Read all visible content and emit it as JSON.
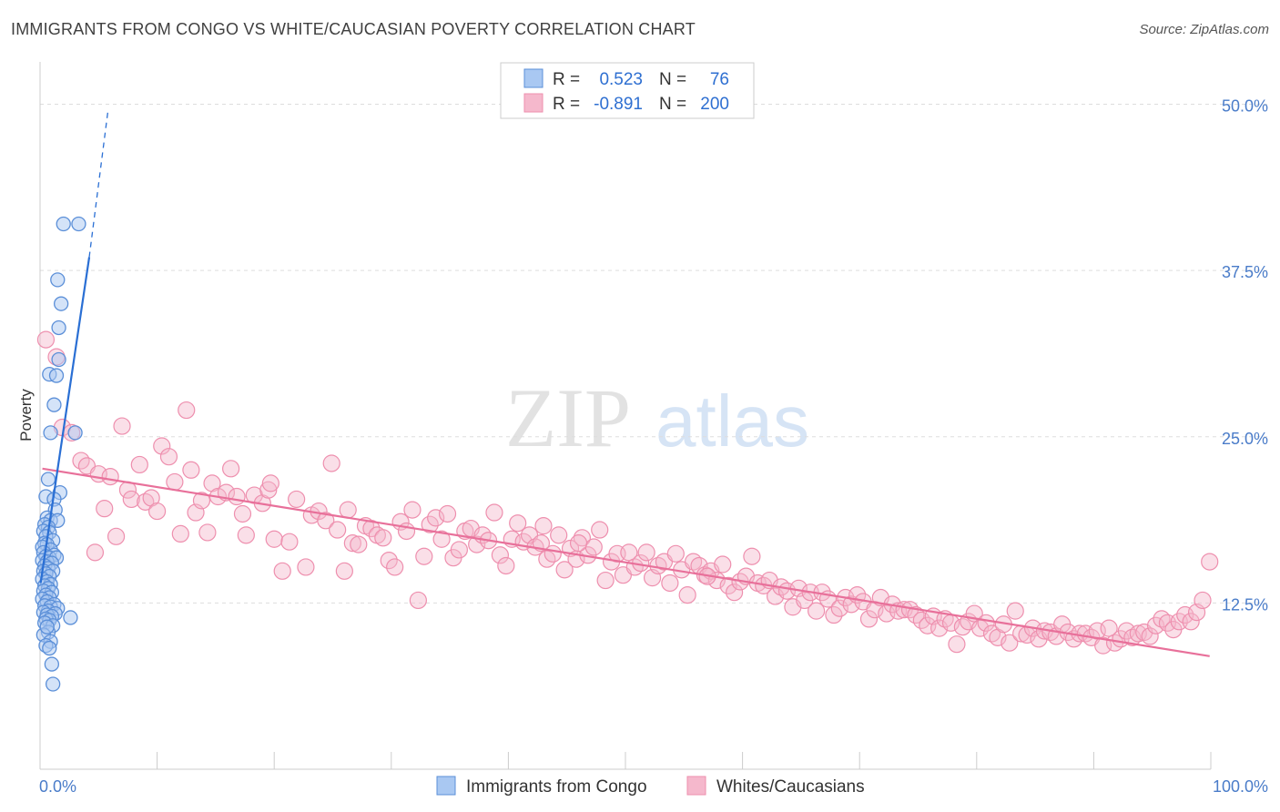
{
  "title": "IMMIGRANTS FROM CONGO VS WHITE/CAUCASIAN POVERTY CORRELATION CHART",
  "source": "Source: ZipAtlas.com",
  "watermark": {
    "zip": "ZIP",
    "atlas": "atlas"
  },
  "colors": {
    "blue_fill": "#a9c8f2",
    "blue_stroke": "#5b8fd8",
    "blue_line": "#2a6fd4",
    "pink_fill": "#f5b8cc",
    "pink_stroke": "#ee8fae",
    "pink_line": "#e8709a",
    "grid": "#dddddd",
    "axis_label": "#4a7cc9"
  },
  "legend": {
    "rows": [
      {
        "r_label": "R =",
        "r_value": "0.523",
        "n_label": "N =",
        "n_value": "76",
        "series": "Immigrants from Congo"
      },
      {
        "r_label": "R =",
        "r_value": "-0.891",
        "n_label": "N =",
        "n_value": "200",
        "series": "Whites/Caucasians"
      }
    ]
  },
  "bottom_legend": [
    "Immigrants from Congo",
    "Whites/Caucasians"
  ],
  "chart_data": {
    "type": "scatter",
    "title": "IMMIGRANTS FROM CONGO VS WHITE/CAUCASIAN POVERTY CORRELATION CHART",
    "xlabel": "",
    "ylabel": "Poverty",
    "xlim": [
      0,
      100
    ],
    "ylim": [
      0,
      52.5
    ],
    "x_tick_labels": [
      "0.0%",
      "100.0%"
    ],
    "y_ticks": [
      12.5,
      25.0,
      37.5,
      50.0
    ],
    "y_tick_labels": [
      "12.5%",
      "25.0%",
      "37.5%",
      "50.0%"
    ],
    "grid": true,
    "legend_position": "top-center",
    "series": [
      {
        "name": "Immigrants from Congo",
        "trend": {
          "x": [
            0.05,
            4.2
          ],
          "y": [
            14.0,
            38.5
          ],
          "dashed_to": {
            "x": 5.8,
            "y": 49.5
          }
        },
        "points": [
          [
            2.0,
            41.0
          ],
          [
            3.3,
            41.0
          ],
          [
            1.5,
            36.8
          ],
          [
            1.8,
            35.0
          ],
          [
            1.6,
            33.2
          ],
          [
            0.8,
            29.7
          ],
          [
            1.4,
            29.6
          ],
          [
            1.6,
            30.8
          ],
          [
            1.2,
            27.4
          ],
          [
            0.9,
            25.3
          ],
          [
            3.0,
            25.3
          ],
          [
            0.7,
            21.8
          ],
          [
            1.7,
            20.8
          ],
          [
            0.5,
            20.5
          ],
          [
            1.2,
            20.3
          ],
          [
            1.3,
            19.5
          ],
          [
            0.6,
            18.9
          ],
          [
            0.9,
            18.7
          ],
          [
            1.5,
            18.7
          ],
          [
            0.4,
            18.4
          ],
          [
            0.7,
            18.2
          ],
          [
            0.3,
            17.9
          ],
          [
            0.8,
            17.8
          ],
          [
            0.5,
            17.5
          ],
          [
            1.1,
            17.2
          ],
          [
            0.4,
            17.0
          ],
          [
            0.6,
            16.9
          ],
          [
            0.2,
            16.7
          ],
          [
            0.9,
            16.5
          ],
          [
            0.3,
            16.3
          ],
          [
            1.2,
            16.1
          ],
          [
            0.5,
            16.0
          ],
          [
            0.8,
            15.9
          ],
          [
            1.4,
            15.9
          ],
          [
            0.2,
            15.7
          ],
          [
            0.6,
            15.6
          ],
          [
            1.0,
            15.5
          ],
          [
            0.4,
            15.3
          ],
          [
            0.7,
            15.1
          ],
          [
            0.3,
            14.9
          ],
          [
            1.1,
            14.9
          ],
          [
            0.5,
            14.7
          ],
          [
            0.8,
            14.5
          ],
          [
            0.2,
            14.3
          ],
          [
            0.6,
            14.1
          ],
          [
            0.9,
            13.9
          ],
          [
            0.4,
            13.8
          ],
          [
            0.7,
            13.6
          ],
          [
            0.3,
            13.4
          ],
          [
            1.0,
            13.3
          ],
          [
            0.5,
            13.1
          ],
          [
            0.8,
            12.9
          ],
          [
            0.2,
            12.8
          ],
          [
            0.6,
            12.6
          ],
          [
            1.2,
            12.4
          ],
          [
            0.4,
            12.3
          ],
          [
            0.9,
            12.2
          ],
          [
            1.5,
            12.1
          ],
          [
            0.7,
            11.9
          ],
          [
            0.3,
            11.8
          ],
          [
            1.3,
            11.7
          ],
          [
            0.6,
            11.6
          ],
          [
            1.0,
            11.5
          ],
          [
            2.6,
            11.4
          ],
          [
            0.5,
            11.3
          ],
          [
            0.8,
            11.2
          ],
          [
            0.4,
            11.0
          ],
          [
            1.1,
            10.8
          ],
          [
            0.7,
            10.3
          ],
          [
            0.3,
            10.1
          ],
          [
            0.9,
            9.6
          ],
          [
            0.5,
            9.3
          ],
          [
            0.8,
            9.1
          ],
          [
            1.0,
            7.9
          ],
          [
            1.1,
            6.4
          ],
          [
            0.6,
            10.7
          ]
        ]
      },
      {
        "name": "Whites/Caucasians",
        "trend": {
          "x": [
            0.2,
            99.9
          ],
          "y": [
            22.6,
            8.5
          ]
        },
        "points": [
          [
            0.5,
            32.3
          ],
          [
            1.4,
            31.0
          ],
          [
            1.9,
            25.7
          ],
          [
            2.7,
            25.3
          ],
          [
            3.5,
            23.2
          ],
          [
            4.0,
            22.8
          ],
          [
            4.7,
            16.3
          ],
          [
            5.0,
            22.2
          ],
          [
            5.5,
            19.6
          ],
          [
            6.0,
            22.0
          ],
          [
            6.5,
            17.5
          ],
          [
            7.0,
            25.8
          ],
          [
            7.5,
            21.0
          ],
          [
            7.8,
            20.3
          ],
          [
            8.5,
            22.9
          ],
          [
            9.0,
            20.1
          ],
          [
            9.5,
            20.4
          ],
          [
            10.0,
            19.4
          ],
          [
            10.4,
            24.3
          ],
          [
            11.0,
            23.5
          ],
          [
            11.5,
            21.6
          ],
          [
            12.0,
            17.7
          ],
          [
            12.5,
            27.0
          ],
          [
            12.9,
            22.5
          ],
          [
            13.3,
            19.3
          ],
          [
            13.8,
            20.2
          ],
          [
            14.3,
            17.8
          ],
          [
            14.7,
            21.5
          ],
          [
            15.2,
            20.5
          ],
          [
            15.9,
            20.8
          ],
          [
            16.3,
            22.6
          ],
          [
            16.8,
            20.5
          ],
          [
            17.3,
            19.2
          ],
          [
            17.6,
            17.6
          ],
          [
            18.3,
            20.6
          ],
          [
            19.0,
            20.0
          ],
          [
            19.5,
            21.0
          ],
          [
            19.7,
            21.5
          ],
          [
            20.0,
            17.3
          ],
          [
            20.7,
            14.9
          ],
          [
            21.3,
            17.1
          ],
          [
            21.9,
            20.3
          ],
          [
            22.7,
            15.2
          ],
          [
            23.2,
            19.1
          ],
          [
            23.8,
            19.4
          ],
          [
            24.4,
            18.7
          ],
          [
            24.9,
            23.0
          ],
          [
            25.4,
            18.0
          ],
          [
            26.0,
            14.9
          ],
          [
            26.3,
            19.5
          ],
          [
            26.7,
            17.0
          ],
          [
            27.2,
            16.9
          ],
          [
            27.8,
            18.3
          ],
          [
            28.3,
            18.1
          ],
          [
            28.8,
            17.6
          ],
          [
            29.3,
            17.4
          ],
          [
            29.8,
            15.7
          ],
          [
            30.3,
            15.2
          ],
          [
            30.8,
            18.6
          ],
          [
            31.3,
            17.9
          ],
          [
            31.8,
            19.5
          ],
          [
            32.3,
            12.7
          ],
          [
            32.8,
            16.0
          ],
          [
            33.3,
            18.4
          ],
          [
            33.8,
            18.9
          ],
          [
            34.3,
            17.3
          ],
          [
            34.8,
            19.2
          ],
          [
            35.3,
            15.9
          ],
          [
            35.8,
            16.5
          ],
          [
            36.3,
            17.9
          ],
          [
            36.8,
            18.1
          ],
          [
            37.3,
            16.9
          ],
          [
            37.8,
            17.6
          ],
          [
            38.3,
            17.2
          ],
          [
            38.8,
            19.3
          ],
          [
            39.3,
            16.1
          ],
          [
            39.8,
            15.3
          ],
          [
            40.3,
            17.3
          ],
          [
            40.8,
            18.5
          ],
          [
            41.3,
            17.1
          ],
          [
            41.8,
            17.6
          ],
          [
            42.3,
            16.7
          ],
          [
            42.8,
            17.0
          ],
          [
            43.3,
            15.8
          ],
          [
            43.8,
            16.2
          ],
          [
            44.3,
            17.6
          ],
          [
            44.8,
            15.0
          ],
          [
            45.3,
            16.6
          ],
          [
            45.8,
            15.8
          ],
          [
            46.3,
            17.4
          ],
          [
            46.8,
            16.1
          ],
          [
            47.3,
            16.7
          ],
          [
            47.8,
            18.0
          ],
          [
            48.3,
            14.2
          ],
          [
            48.8,
            15.6
          ],
          [
            49.3,
            16.2
          ],
          [
            49.8,
            14.6
          ],
          [
            50.3,
            16.3
          ],
          [
            50.8,
            15.2
          ],
          [
            51.3,
            15.5
          ],
          [
            51.8,
            16.3
          ],
          [
            52.3,
            14.4
          ],
          [
            52.8,
            15.3
          ],
          [
            53.3,
            15.6
          ],
          [
            53.8,
            14.0
          ],
          [
            54.3,
            16.2
          ],
          [
            54.8,
            15.0
          ],
          [
            55.3,
            13.1
          ],
          [
            55.8,
            15.6
          ],
          [
            56.3,
            15.3
          ],
          [
            56.8,
            14.6
          ],
          [
            57.3,
            14.9
          ],
          [
            57.8,
            14.2
          ],
          [
            58.3,
            15.4
          ],
          [
            58.8,
            13.8
          ],
          [
            59.3,
            13.3
          ],
          [
            59.8,
            14.1
          ],
          [
            60.3,
            14.5
          ],
          [
            60.8,
            16.0
          ],
          [
            61.3,
            14.0
          ],
          [
            61.8,
            13.8
          ],
          [
            62.3,
            14.2
          ],
          [
            62.8,
            13.0
          ],
          [
            63.3,
            13.7
          ],
          [
            63.8,
            13.4
          ],
          [
            64.3,
            12.2
          ],
          [
            64.8,
            13.6
          ],
          [
            65.3,
            12.7
          ],
          [
            65.8,
            13.3
          ],
          [
            66.3,
            11.9
          ],
          [
            66.8,
            13.3
          ],
          [
            67.3,
            12.8
          ],
          [
            67.8,
            11.6
          ],
          [
            68.3,
            12.1
          ],
          [
            68.8,
            12.9
          ],
          [
            69.3,
            12.4
          ],
          [
            69.8,
            13.1
          ],
          [
            70.3,
            12.6
          ],
          [
            70.8,
            11.3
          ],
          [
            71.3,
            12.0
          ],
          [
            71.8,
            12.9
          ],
          [
            72.3,
            11.7
          ],
          [
            72.8,
            12.4
          ],
          [
            73.3,
            11.9
          ],
          [
            73.8,
            12.0
          ],
          [
            74.3,
            12.0
          ],
          [
            74.8,
            11.6
          ],
          [
            75.3,
            11.2
          ],
          [
            75.8,
            10.8
          ],
          [
            76.3,
            11.5
          ],
          [
            76.8,
            10.6
          ],
          [
            77.3,
            11.3
          ],
          [
            77.8,
            11.0
          ],
          [
            78.3,
            9.4
          ],
          [
            78.8,
            10.7
          ],
          [
            79.3,
            11.1
          ],
          [
            79.8,
            11.7
          ],
          [
            80.3,
            10.6
          ],
          [
            80.8,
            11.0
          ],
          [
            81.3,
            10.2
          ],
          [
            81.8,
            9.9
          ],
          [
            82.3,
            10.9
          ],
          [
            82.8,
            9.5
          ],
          [
            83.3,
            11.9
          ],
          [
            83.8,
            10.2
          ],
          [
            84.3,
            10.1
          ],
          [
            84.8,
            10.6
          ],
          [
            85.3,
            9.8
          ],
          [
            85.8,
            10.4
          ],
          [
            86.3,
            10.3
          ],
          [
            86.8,
            10.0
          ],
          [
            87.3,
            10.9
          ],
          [
            87.8,
            10.3
          ],
          [
            88.3,
            9.8
          ],
          [
            88.8,
            10.2
          ],
          [
            89.3,
            10.2
          ],
          [
            89.8,
            9.9
          ],
          [
            90.3,
            10.4
          ],
          [
            90.8,
            9.3
          ],
          [
            91.3,
            10.6
          ],
          [
            91.8,
            9.5
          ],
          [
            92.3,
            9.8
          ],
          [
            92.8,
            10.4
          ],
          [
            93.3,
            9.9
          ],
          [
            93.8,
            10.2
          ],
          [
            94.3,
            10.3
          ],
          [
            94.8,
            10.0
          ],
          [
            95.3,
            10.8
          ],
          [
            95.8,
            11.3
          ],
          [
            96.3,
            11.0
          ],
          [
            96.8,
            10.5
          ],
          [
            97.3,
            11.1
          ],
          [
            97.8,
            11.6
          ],
          [
            98.3,
            11.1
          ],
          [
            98.8,
            11.8
          ],
          [
            99.3,
            12.7
          ],
          [
            99.9,
            15.6
          ],
          [
            43.0,
            18.3
          ],
          [
            46.0,
            17.0
          ],
          [
            57.0,
            14.5
          ]
        ]
      }
    ]
  }
}
